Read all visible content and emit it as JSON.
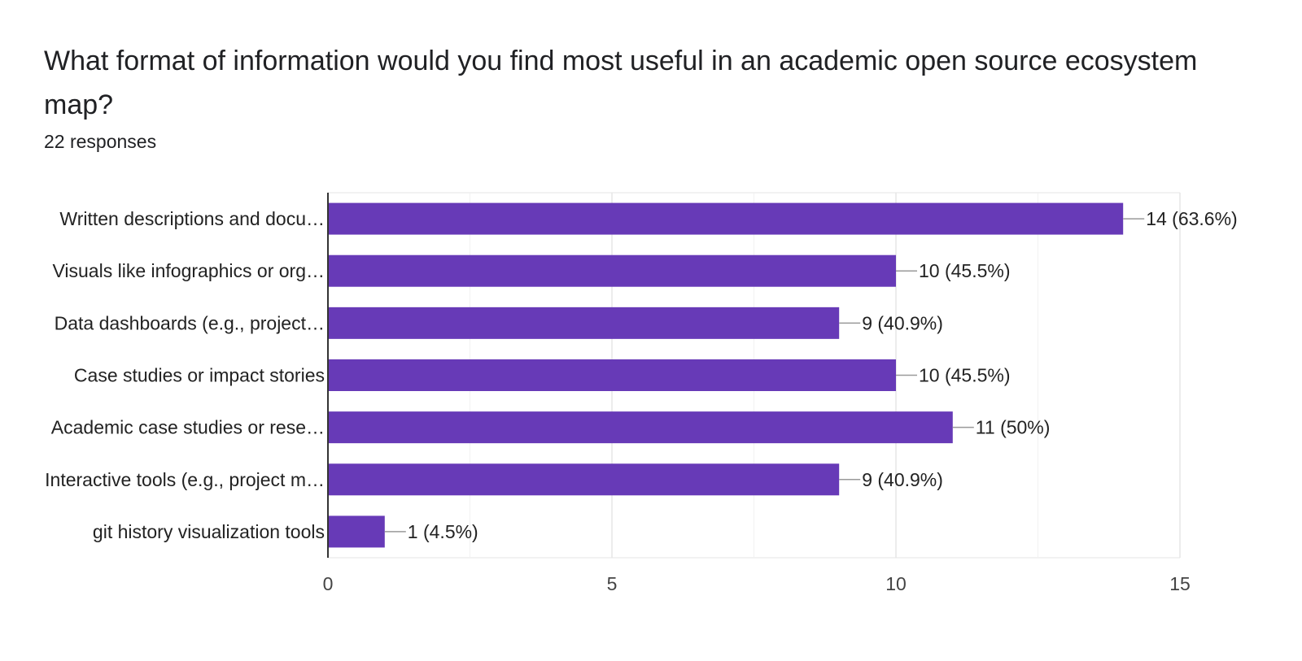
{
  "question": "What format of information would you find most useful in an academic open source ecosystem map?",
  "responses_text": "22 responses",
  "colors": {
    "bar": "#673ab7",
    "grid": "#e6e6e6",
    "axis": "#333333",
    "leader": "#999999"
  },
  "chart_data": {
    "type": "bar",
    "orientation": "horizontal",
    "title": "What format of information would you find most useful in an academic open source ecosystem map?",
    "categories": [
      "Written descriptions and docu…",
      "Visuals like infographics or org…",
      "Data dashboards (e.g., project…",
      "Case studies or impact stories",
      "Academic case studies or rese…",
      "Interactive tools (e.g., project m…",
      "git history visualization tools"
    ],
    "values": [
      14,
      10,
      9,
      10,
      11,
      9,
      1
    ],
    "data_labels": [
      "14 (63.6%)",
      "10 (45.5%)",
      "9 (40.9%)",
      "10 (45.5%)",
      "11 (50%)",
      "9 (40.9%)",
      "1 (4.5%)"
    ],
    "xlim": [
      0,
      15
    ],
    "xticks": [
      0,
      5,
      10,
      15
    ],
    "xtick_labels": [
      "0",
      "5",
      "10",
      "15"
    ],
    "minor_gridlines": [
      2.5,
      7.5,
      12.5
    ],
    "grid": true,
    "xlabel": "",
    "ylabel": ""
  }
}
